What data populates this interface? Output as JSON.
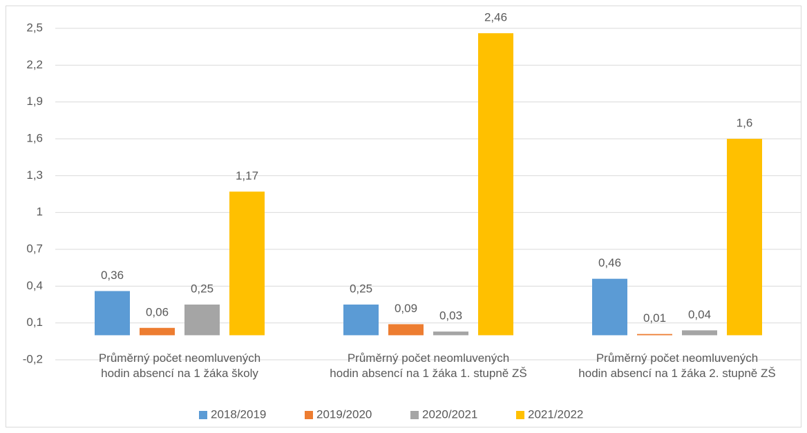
{
  "chart_data": {
    "type": "bar",
    "categories": [
      "Průměrný počet neomluvených\nhodin absencí na 1 žáka školy",
      "Průměrný počet neomluvených\nhodin absencí na 1 žáka 1. stupně ZŠ",
      "Průměrný počet neomluvených\nhodin absencí na 1 žáka 2. stupně ZŠ"
    ],
    "series": [
      {
        "name": "2018/2019",
        "color": "#5b9bd5",
        "values": [
          0.36,
          0.25,
          0.46
        ],
        "value_labels": [
          "0,36",
          "0,25",
          "0,46"
        ]
      },
      {
        "name": "2019/2020",
        "color": "#ed7d31",
        "values": [
          0.06,
          0.09,
          0.01
        ],
        "value_labels": [
          "0,06",
          "0,09",
          "0,01"
        ]
      },
      {
        "name": "2020/2021",
        "color": "#a5a5a5",
        "values": [
          0.25,
          0.03,
          0.04
        ],
        "value_labels": [
          "0,25",
          "0,03",
          "0,04"
        ]
      },
      {
        "name": "2021/2022",
        "color": "#ffc000",
        "values": [
          1.17,
          2.46,
          1.6
        ],
        "value_labels": [
          "1,17",
          "2,46",
          "1,6"
        ]
      }
    ],
    "ylim": [
      -0.2,
      2.5
    ],
    "yticks": [
      {
        "value": -0.2,
        "label": "-0,2"
      },
      {
        "value": 0.1,
        "label": "0,1"
      },
      {
        "value": 0.4,
        "label": "0,4"
      },
      {
        "value": 0.7,
        "label": "0,7"
      },
      1,
      {
        "value": 1.3,
        "label": "1,3"
      },
      {
        "value": 1.6,
        "label": "1,6"
      },
      {
        "value": 1.9,
        "label": "1,9"
      },
      {
        "value": 2.2,
        "label": "2,2"
      },
      {
        "value": 2.5,
        "label": "2,5"
      }
    ],
    "grid": true,
    "legend": "bottom"
  }
}
